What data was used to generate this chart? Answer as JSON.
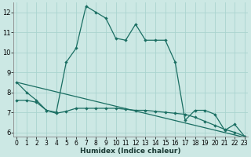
{
  "xlabel": "Humidex (Indice chaleur)",
  "background_color": "#cce8e4",
  "grid_color": "#aad4cf",
  "line_color": "#1a6e62",
  "x_values": [
    0,
    1,
    2,
    3,
    4,
    5,
    6,
    7,
    8,
    9,
    10,
    11,
    12,
    13,
    14,
    15,
    16,
    17,
    18,
    19,
    20,
    21,
    22,
    23
  ],
  "series1": [
    8.5,
    8.0,
    7.6,
    7.1,
    7.0,
    9.5,
    10.2,
    12.3,
    12.0,
    11.7,
    10.7,
    10.6,
    11.4,
    10.6,
    10.6,
    10.6,
    9.5,
    6.6,
    7.1,
    7.1,
    6.9,
    6.1,
    6.4,
    5.8
  ],
  "series2": [
    7.6,
    7.6,
    7.5,
    7.1,
    6.95,
    7.05,
    7.2,
    7.2,
    7.2,
    7.2,
    7.2,
    7.15,
    7.1,
    7.1,
    7.05,
    7.0,
    6.95,
    6.9,
    6.75,
    6.55,
    6.35,
    6.15,
    6.0,
    5.8
  ],
  "series3_x": [
    0,
    23
  ],
  "series3_y": [
    8.5,
    5.75
  ],
  "ylim": [
    5.8,
    12.5
  ],
  "ytick_min": 6,
  "ytick_max": 12,
  "xlim": [
    -0.3,
    23.3
  ],
  "yticks": [
    6,
    7,
    8,
    9,
    10,
    11,
    12
  ],
  "xticks": [
    0,
    1,
    2,
    3,
    4,
    5,
    6,
    7,
    8,
    9,
    10,
    11,
    12,
    13,
    14,
    15,
    16,
    17,
    18,
    19,
    20,
    21,
    22,
    23
  ]
}
